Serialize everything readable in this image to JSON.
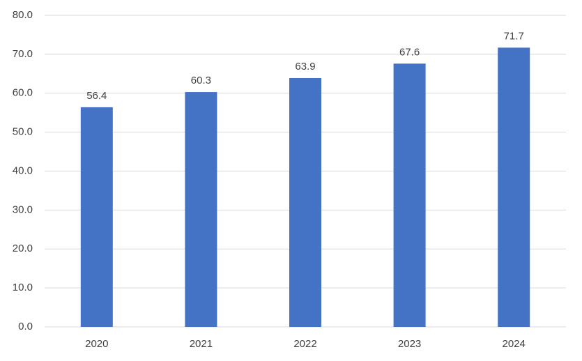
{
  "chart_data": {
    "type": "bar",
    "categories": [
      "2020",
      "2021",
      "2022",
      "2023",
      "2024"
    ],
    "values": [
      56.4,
      60.3,
      63.9,
      67.6,
      71.7
    ],
    "color": "#4472c4",
    "ylim": [
      0,
      80
    ],
    "yticks": [
      {
        "value": 0,
        "label": "0.0"
      },
      {
        "value": 10,
        "label": "10.0"
      },
      {
        "value": 20,
        "label": "20.0"
      },
      {
        "value": 30,
        "label": "30.0"
      },
      {
        "value": 40,
        "label": "40.0"
      },
      {
        "value": 50,
        "label": "50.0"
      },
      {
        "value": 60,
        "label": "60.0"
      },
      {
        "value": 70,
        "label": "70.0"
      },
      {
        "value": 80,
        "label": "80.0"
      }
    ],
    "grid": true
  }
}
